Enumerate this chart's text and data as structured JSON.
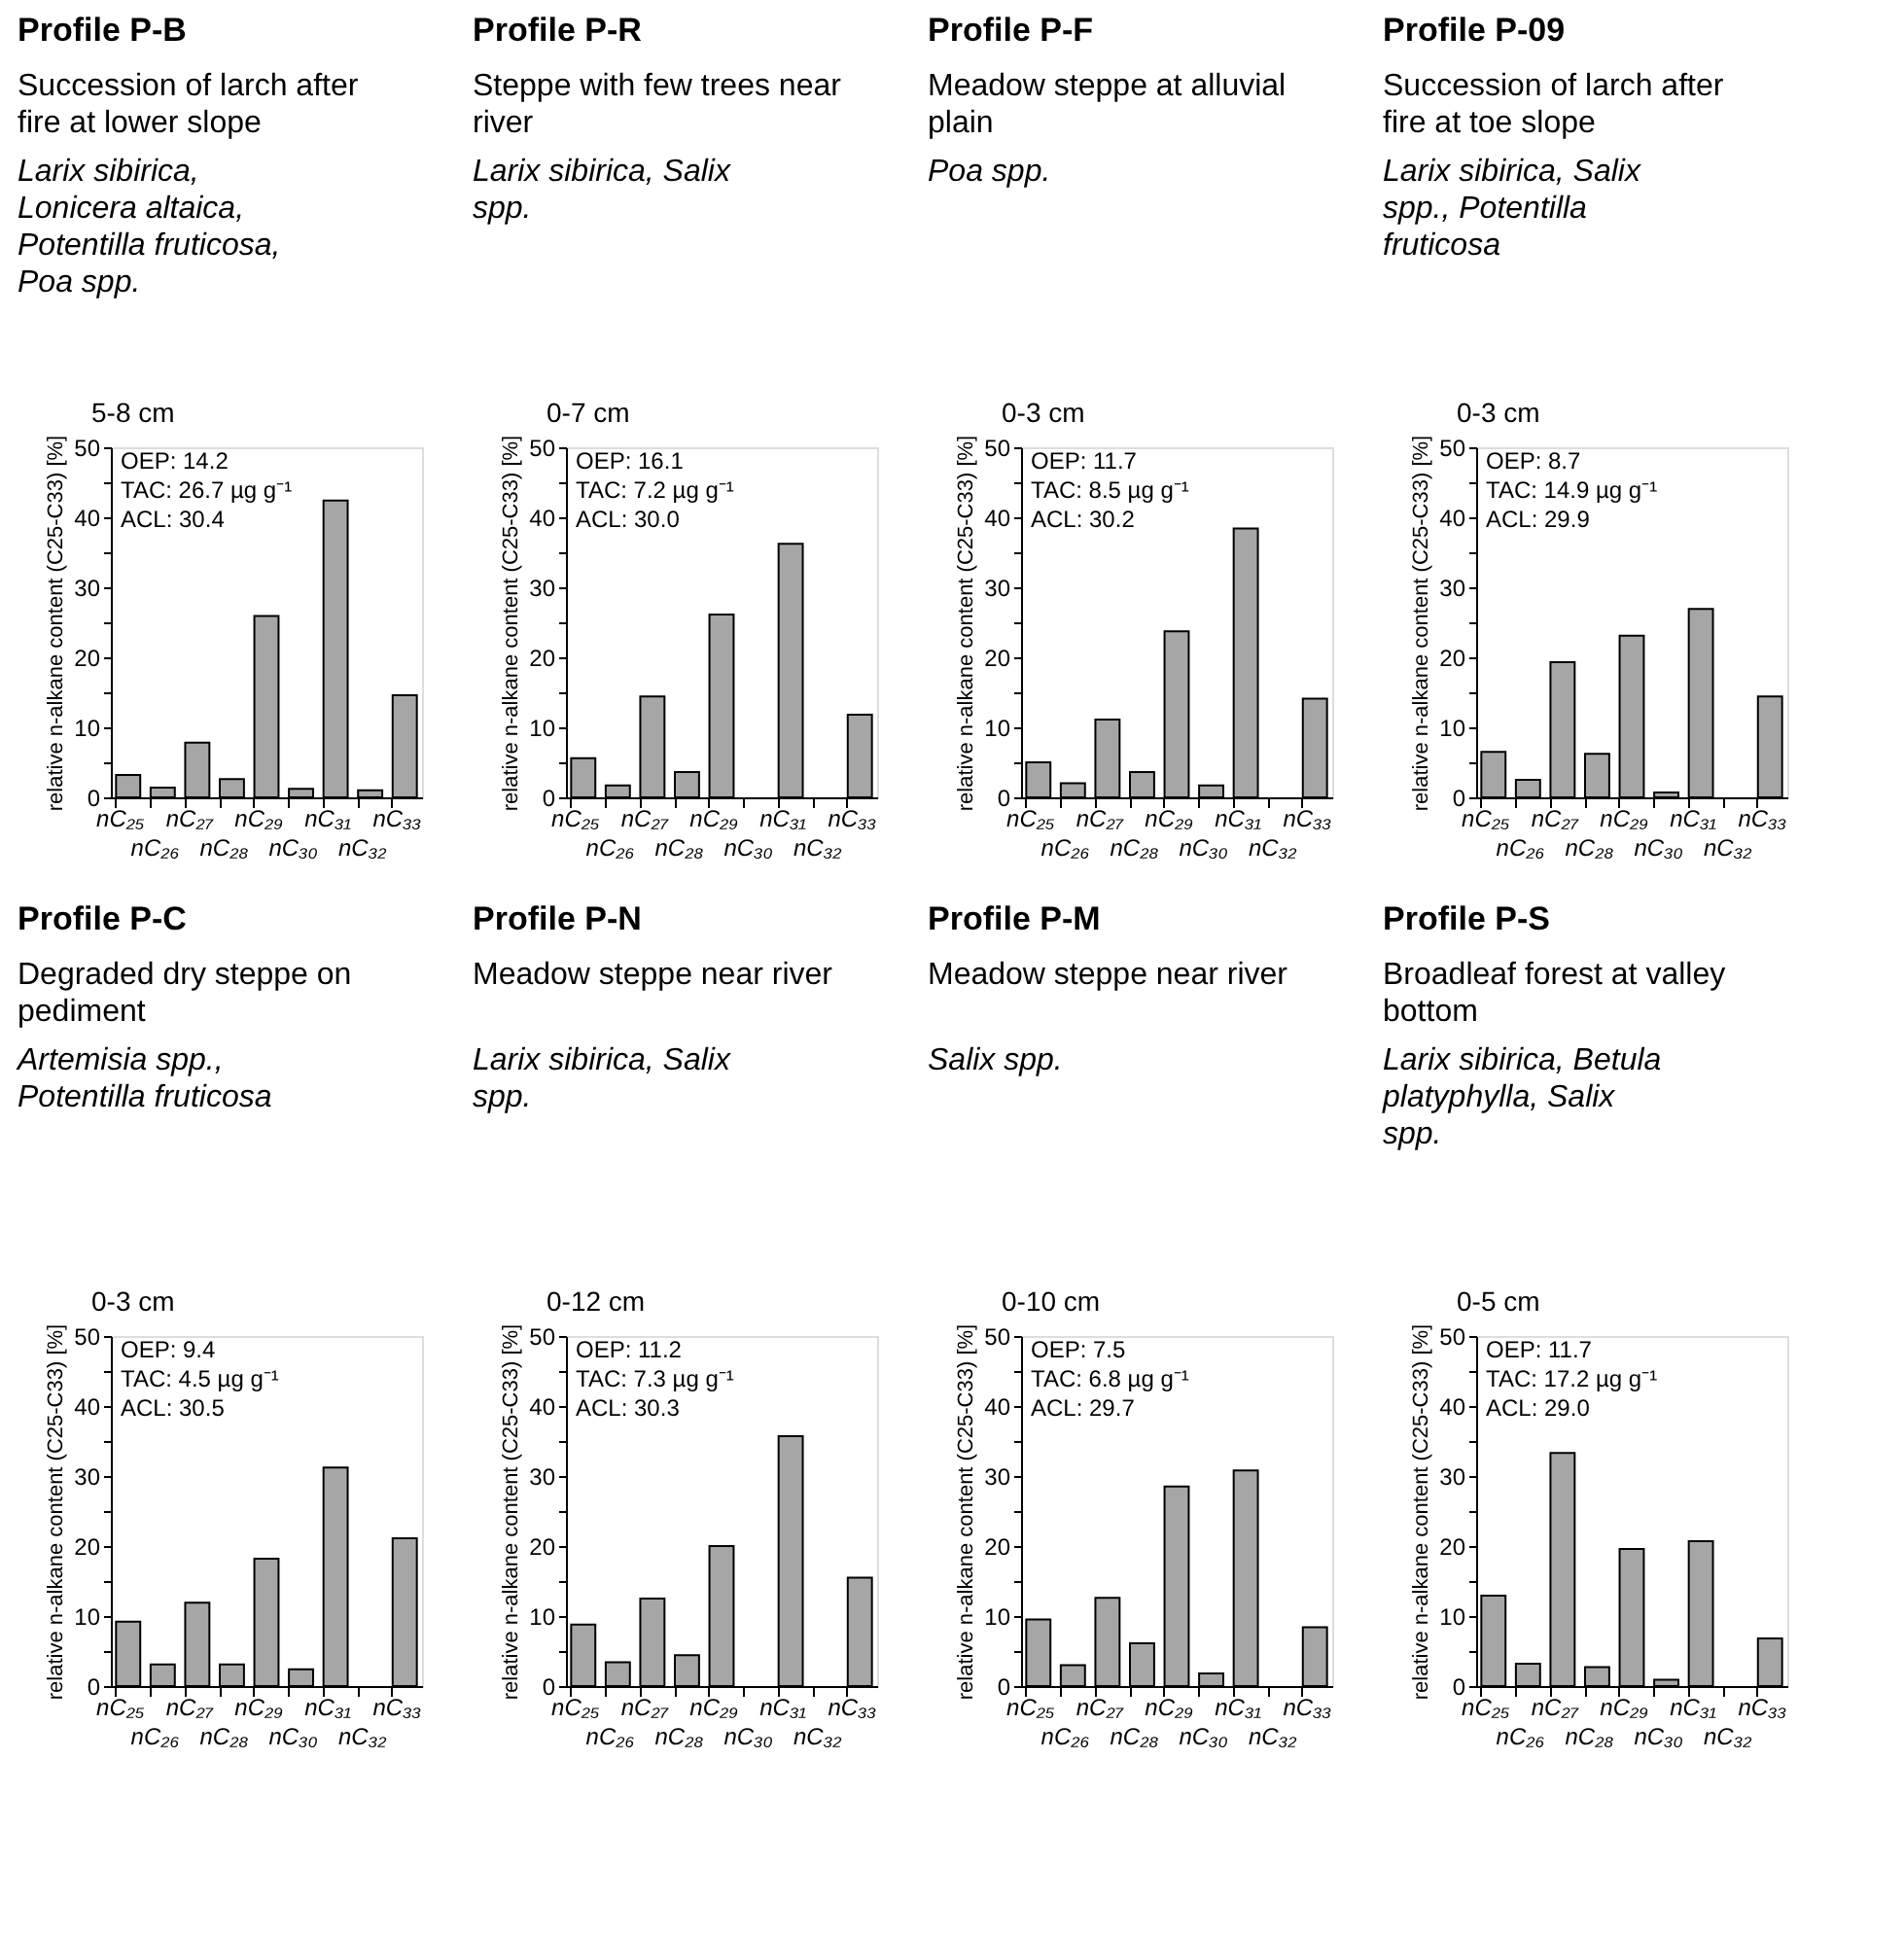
{
  "chart_data": [
    {
      "type": "bar",
      "title": "Profile P-B",
      "subtitle": "Succession of larch after fire at lower slope",
      "annotations": [
        "Larix sibirica, Lonicera altaica, Potentilla fruticosa, Poa spp.",
        "5-8 cm",
        "OEP: 14.2",
        "TAC: 26.7 µg g⁻¹",
        "ACL: 30.4"
      ],
      "ylabel": "relative n-alkane content (C25-C33) [%]",
      "categories": [
        "nC₂₅",
        "nC₂₆",
        "nC₂₇",
        "nC₂₈",
        "nC₂₉",
        "nC₃₀",
        "nC₃₁",
        "nC₃₂",
        "nC₃₃"
      ],
      "values": [
        3.2,
        1.4,
        7.8,
        2.6,
        25.9,
        1.2,
        42.4,
        1.0,
        14.6
      ],
      "color": "#a6a6a6",
      "ylim": [
        0,
        50
      ],
      "yticks": [
        0,
        {
          "value": 5,
          "label": null
        },
        10,
        {
          "value": 15,
          "label": null
        },
        20,
        {
          "value": 25,
          "label": null
        },
        30,
        {
          "value": 35,
          "label": null
        },
        40,
        {
          "value": 45,
          "label": null
        },
        50
      ]
    },
    {
      "type": "bar",
      "title": "Profile P-R",
      "subtitle": "Steppe with few trees near river",
      "annotations": [
        "Larix sibirica, Salix spp.",
        "0-7 cm",
        "OEP: 16.1",
        "TAC: 7.2 µg g⁻¹",
        "ACL: 30.0"
      ],
      "ylabel": "relative n-alkane content (C25-C33) [%]",
      "categories": [
        "nC₂₅",
        "nC₂₆",
        "nC₂₇",
        "nC₂₈",
        "nC₂₉",
        "nC₃₀",
        "nC₃₁",
        "nC₃₂",
        "nC₃₃"
      ],
      "values": [
        5.6,
        1.7,
        14.4,
        3.6,
        26.1,
        null,
        36.2,
        null,
        11.8
      ],
      "color": "#a6a6a6",
      "ylim": [
        0,
        50
      ],
      "yticks": [
        0,
        {
          "value": 5,
          "label": null
        },
        10,
        {
          "value": 15,
          "label": null
        },
        20,
        {
          "value": 25,
          "label": null
        },
        30,
        {
          "value": 35,
          "label": null
        },
        40,
        {
          "value": 45,
          "label": null
        },
        50
      ]
    },
    {
      "type": "bar",
      "title": "Profile P-F",
      "subtitle": "Meadow steppe at alluvial plain",
      "annotations": [
        "Poa spp.",
        "0-3 cm",
        "OEP: 11.7",
        "TAC: 8.5 µg g⁻¹",
        "ACL: 30.2"
      ],
      "ylabel": "relative n-alkane content (C25-C33) [%]",
      "categories": [
        "nC₂₅",
        "nC₂₆",
        "nC₂₇",
        "nC₂₈",
        "nC₂₉",
        "nC₃₀",
        "nC₃₁",
        "nC₃₂",
        "nC₃₃"
      ],
      "values": [
        5.0,
        2.0,
        11.1,
        3.6,
        23.7,
        1.7,
        38.4,
        null,
        14.1
      ],
      "color": "#a6a6a6",
      "ylim": [
        0,
        50
      ],
      "yticks": [
        0,
        {
          "value": 5,
          "label": null
        },
        10,
        {
          "value": 15,
          "label": null
        },
        20,
        {
          "value": 25,
          "label": null
        },
        30,
        {
          "value": 35,
          "label": null
        },
        40,
        {
          "value": 45,
          "label": null
        },
        50
      ]
    },
    {
      "type": "bar",
      "title": "Profile P-09",
      "subtitle": "Succession of larch after fire at toe slope",
      "annotations": [
        "Larix sibirica, Salix spp., Potentilla fruticosa",
        "0-3 cm",
        "OEP: 8.7",
        "TAC: 14.9 µg g⁻¹",
        "ACL: 29.9"
      ],
      "ylabel": "relative n-alkane content (C25-C33) [%]",
      "categories": [
        "nC₂₅",
        "nC₂₆",
        "nC₂₇",
        "nC₂₈",
        "nC₂₉",
        "nC₃₀",
        "nC₃₁",
        "nC₃₂",
        "nC₃₃"
      ],
      "values": [
        6.5,
        2.5,
        19.3,
        6.2,
        23.1,
        0.7,
        26.9,
        null,
        14.4
      ],
      "color": "#a6a6a6",
      "ylim": [
        0,
        50
      ],
      "yticks": [
        0,
        {
          "value": 5,
          "label": null
        },
        10,
        {
          "value": 15,
          "label": null
        },
        20,
        {
          "value": 25,
          "label": null
        },
        30,
        {
          "value": 35,
          "label": null
        },
        40,
        {
          "value": 45,
          "label": null
        },
        50
      ]
    },
    {
      "type": "bar",
      "title": "Profile P-C",
      "subtitle": "Degraded dry steppe on pediment",
      "annotations": [
        "Artemisia spp., Potentilla fruticosa",
        "0-3 cm",
        "OEP: 9.4",
        "TAC: 4.5 µg g⁻¹",
        "ACL: 30.5"
      ],
      "ylabel": "relative n-alkane content (C25-C33) [%]",
      "categories": [
        "nC₂₅",
        "nC₂₆",
        "nC₂₇",
        "nC₂₈",
        "nC₂₉",
        "nC₃₀",
        "nC₃₁",
        "nC₃₂",
        "nC₃₃"
      ],
      "values": [
        9.2,
        3.1,
        11.9,
        3.1,
        18.2,
        2.4,
        31.2,
        null,
        21.1
      ],
      "color": "#a6a6a6",
      "ylim": [
        0,
        50
      ],
      "yticks": [
        0,
        {
          "value": 5,
          "label": null
        },
        10,
        {
          "value": 15,
          "label": null
        },
        20,
        {
          "value": 25,
          "label": null
        },
        30,
        {
          "value": 35,
          "label": null
        },
        40,
        {
          "value": 45,
          "label": null
        },
        50
      ]
    },
    {
      "type": "bar",
      "title": "Profile P-N",
      "subtitle": "Meadow steppe near river",
      "annotations": [
        "Larix sibirica, Salix spp.",
        "0-12 cm",
        "OEP: 11.2",
        "TAC: 7.3 µg g⁻¹",
        "ACL: 30.3"
      ],
      "ylabel": "relative n-alkane content (C25-C33) [%]",
      "categories": [
        "nC₂₅",
        "nC₂₆",
        "nC₂₇",
        "nC₂₈",
        "nC₂₉",
        "nC₃₀",
        "nC₃₁",
        "nC₃₂",
        "nC₃₃"
      ],
      "values": [
        8.8,
        3.4,
        12.5,
        4.4,
        20.0,
        null,
        35.7,
        null,
        15.5
      ],
      "color": "#a6a6a6",
      "ylim": [
        0,
        50
      ],
      "yticks": [
        0,
        {
          "value": 5,
          "label": null
        },
        10,
        {
          "value": 15,
          "label": null
        },
        20,
        {
          "value": 25,
          "label": null
        },
        30,
        {
          "value": 35,
          "label": null
        },
        40,
        {
          "value": 45,
          "label": null
        },
        50
      ]
    },
    {
      "type": "bar",
      "title": "Profile P-M",
      "subtitle": "Meadow steppe near river",
      "annotations": [
        "Salix spp.",
        "0-10 cm",
        "OEP: 7.5",
        "TAC: 6.8 µg g⁻¹",
        "ACL: 29.7"
      ],
      "ylabel": "relative n-alkane content (C25-C33) [%]",
      "categories": [
        "nC₂₅",
        "nC₂₆",
        "nC₂₇",
        "nC₂₈",
        "nC₂₉",
        "nC₃₀",
        "nC₃₁",
        "nC₃₂",
        "nC₃₃"
      ],
      "values": [
        9.5,
        3.0,
        12.6,
        6.1,
        28.5,
        1.8,
        30.8,
        null,
        8.4
      ],
      "color": "#a6a6a6",
      "ylim": [
        0,
        50
      ],
      "yticks": [
        0,
        {
          "value": 5,
          "label": null
        },
        10,
        {
          "value": 15,
          "label": null
        },
        20,
        {
          "value": 25,
          "label": null
        },
        30,
        {
          "value": 35,
          "label": null
        },
        40,
        {
          "value": 45,
          "label": null
        },
        50
      ]
    },
    {
      "type": "bar",
      "title": "Profile P-S",
      "subtitle": "Broadleaf forest at valley bottom",
      "annotations": [
        "Larix sibirica, Betula platyphylla, Salix spp.",
        "0-5 cm",
        "OEP: 11.7",
        "TAC: 17.2 µg g⁻¹",
        "ACL: 29.0"
      ],
      "ylabel": "relative n-alkane content (C25-C33) [%]",
      "categories": [
        "nC₂₅",
        "nC₂₆",
        "nC₂₇",
        "nC₂₈",
        "nC₂₉",
        "nC₃₀",
        "nC₃₁",
        "nC₃₂",
        "nC₃₃"
      ],
      "values": [
        12.9,
        3.2,
        33.3,
        2.7,
        19.6,
        0.9,
        20.7,
        null,
        6.8
      ],
      "color": "#a6a6a6",
      "ylim": [
        0,
        50
      ],
      "yticks": [
        0,
        {
          "value": 5,
          "label": null
        },
        10,
        {
          "value": 15,
          "label": null
        },
        20,
        {
          "value": 25,
          "label": null
        },
        30,
        {
          "value": 35,
          "label": null
        },
        40,
        {
          "value": 45,
          "label": null
        },
        50
      ]
    }
  ]
}
